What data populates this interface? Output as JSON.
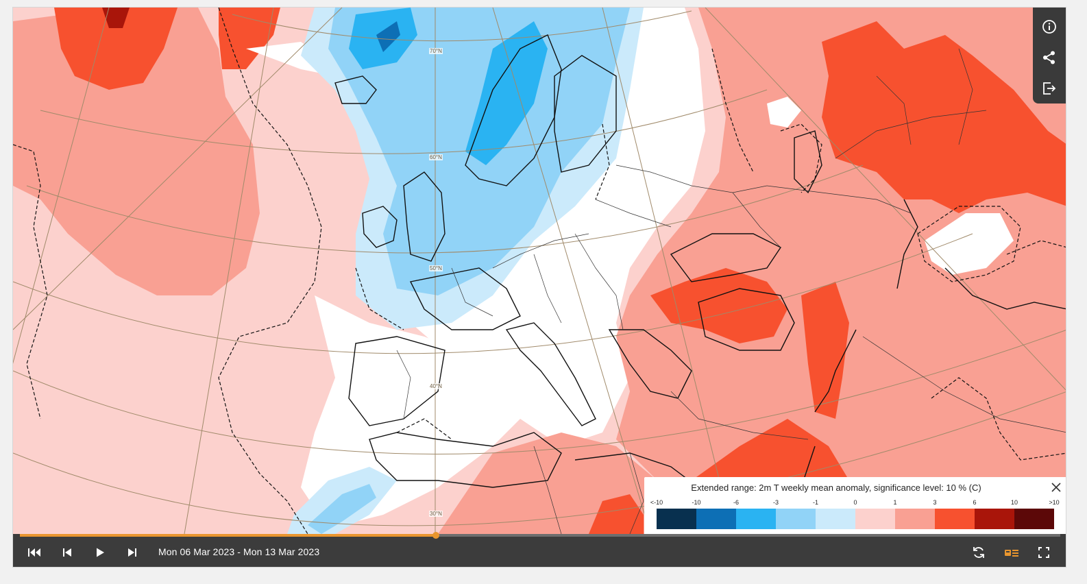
{
  "map": {
    "latitude_labels": [
      "70°N",
      "60°N",
      "50°N",
      "40°N",
      "30°N"
    ],
    "region": "Europe / North Atlantic"
  },
  "side_tools": {
    "icons": [
      "info-icon",
      "share-icon",
      "export-icon"
    ]
  },
  "legend": {
    "title": "Extended range: 2m T weekly mean anomaly, significance level: 10 % (C)",
    "ticks": [
      "<-10",
      "-10",
      "-6",
      "-3",
      "-1",
      "0",
      "1",
      "3",
      "6",
      "10",
      ">10"
    ],
    "colors": [
      "#08304f",
      "#0d6fb5",
      "#2ab3f2",
      "#91d3f7",
      "#cbeafb",
      "#ffffff",
      "#fcd1cd",
      "#f9a093",
      "#f7512f",
      "#a9150a",
      "#5c0808"
    ]
  },
  "timeline": {
    "date_range": "Mon 06 Mar 2023 - Mon 13 Mar 2023",
    "progress_fraction": 0.4,
    "accent": "#e9962f",
    "controls": [
      "skip-to-start-icon",
      "step-back-icon",
      "play-icon",
      "step-forward-icon"
    ],
    "right_controls": [
      "loop-icon",
      "legend-toggle-icon",
      "fullscreen-icon"
    ]
  }
}
